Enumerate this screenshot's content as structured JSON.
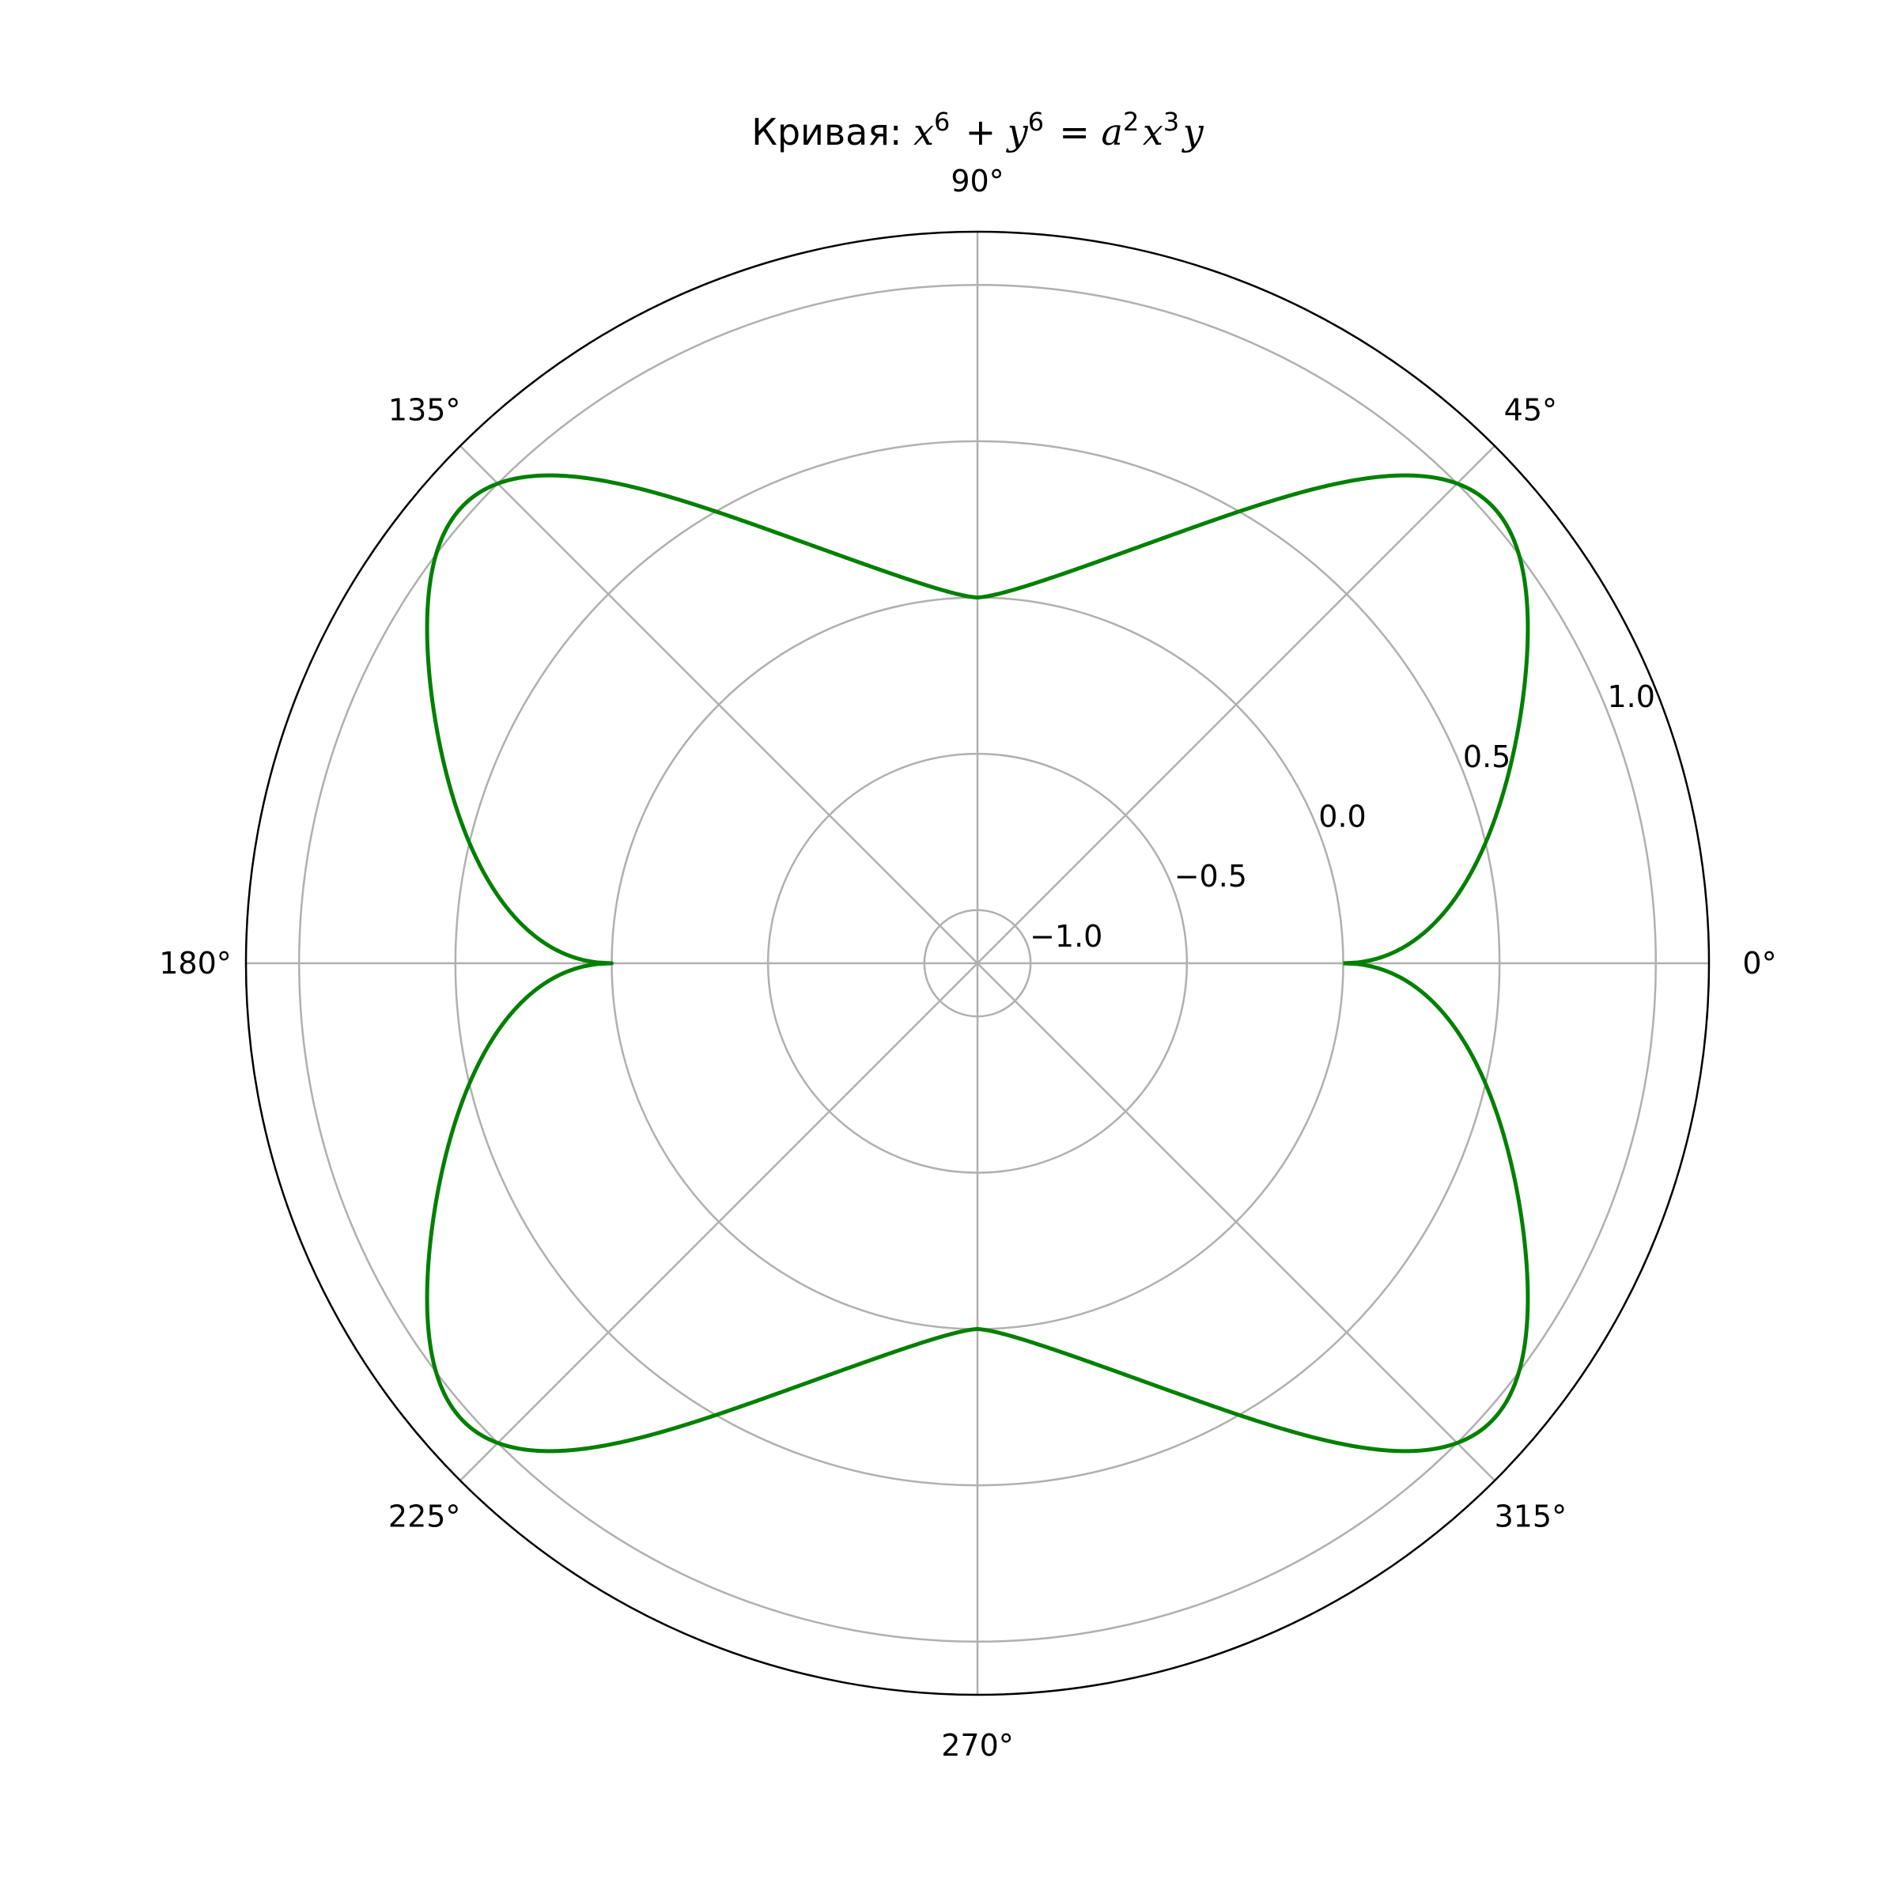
{
  "chart_data": {
    "type": "line",
    "projection": "polar",
    "title": {
      "prefix": "Кривая: ",
      "math": [
        {
          "t": "x",
          "sup": "6"
        },
        {
          "op": " + "
        },
        {
          "t": "y",
          "sup": "6"
        },
        {
          "op": " = "
        },
        {
          "t": "a",
          "sup": "2"
        },
        {
          "t": "x",
          "sup": "3"
        },
        {
          "t": "y"
        }
      ]
    },
    "theta_ticks": [
      {
        "deg": 0,
        "label": "0°"
      },
      {
        "deg": 45,
        "label": "45°"
      },
      {
        "deg": 90,
        "label": "90°"
      },
      {
        "deg": 135,
        "label": "135°"
      },
      {
        "deg": 180,
        "label": "180°"
      },
      {
        "deg": 225,
        "label": "225°"
      },
      {
        "deg": 270,
        "label": "270°"
      },
      {
        "deg": 315,
        "label": "315°"
      }
    ],
    "r_ticks": [
      {
        "value": -1.0,
        "label": "−1.0"
      },
      {
        "value": -0.5,
        "label": "−0.5"
      },
      {
        "value": 0.0,
        "label": "0.0"
      },
      {
        "value": 0.5,
        "label": "0.5"
      },
      {
        "value": 1.0,
        "label": "1.0"
      }
    ],
    "rlim": [
      -1.17,
      1.17
    ],
    "rlabel_position_deg": 22.5,
    "grid": true,
    "series": [
      {
        "color": "#008000",
        "equation": "x^6 + y^6 = a^2 x^3 y",
        "a": 1,
        "theta_range_deg": [
          0,
          360
        ]
      }
    ]
  }
}
